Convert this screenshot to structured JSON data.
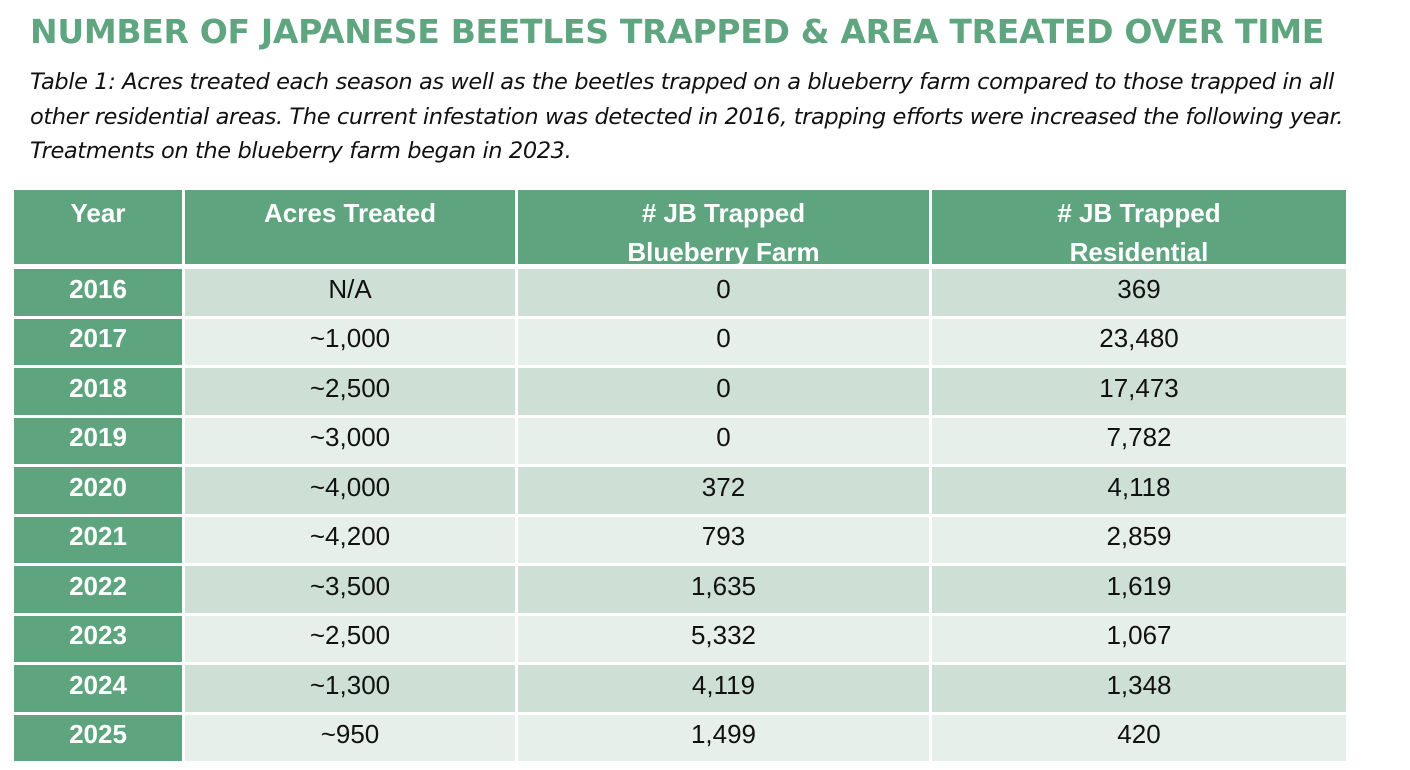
{
  "page": {
    "title": "NUMBER OF JAPANESE BEETLES TRAPPED & AREA TREATED OVER TIME",
    "caption": "Table 1: Acres treated each season as well as the beetles trapped on a blueberry farm compared to those trapped in all other residential areas. The current infestation was detected in 2016, trapping efforts were increased the following year. Treatments on the blueberry farm began in 2023."
  },
  "colors": {
    "accent_green": "#5ea57f",
    "row_shade_dark": "#cedfd5",
    "row_shade_light": "#e7efea",
    "text": "#111111"
  },
  "table": {
    "headers": [
      {
        "line1": "Year",
        "line2": ""
      },
      {
        "line1": "Acres Treated",
        "line2": ""
      },
      {
        "line1": "# JB Trapped",
        "line2": "Blueberry Farm"
      },
      {
        "line1": "# JB Trapped",
        "line2": "Residential"
      }
    ],
    "rows": [
      {
        "year": "2016",
        "acres": "N/A",
        "farm": "0",
        "residential": "369"
      },
      {
        "year": "2017",
        "acres": "~1,000",
        "farm": "0",
        "residential": "23,480"
      },
      {
        "year": "2018",
        "acres": "~2,500",
        "farm": "0",
        "residential": "17,473"
      },
      {
        "year": "2019",
        "acres": "~3,000",
        "farm": "0",
        "residential": "7,782"
      },
      {
        "year": "2020",
        "acres": "~4,000",
        "farm": "372",
        "residential": "4,118"
      },
      {
        "year": "2021",
        "acres": "~4,200",
        "farm": "793",
        "residential": "2,859"
      },
      {
        "year": "2022",
        "acres": "~3,500",
        "farm": "1,635",
        "residential": "1,619"
      },
      {
        "year": "2023",
        "acres": "~2,500",
        "farm": "5,332",
        "residential": "1,067"
      },
      {
        "year": "2024",
        "acres": "~1,300",
        "farm": "4,119",
        "residential": "1,348"
      },
      {
        "year": "2025",
        "acres": "~950",
        "farm": "1,499",
        "residential": "420"
      }
    ]
  }
}
